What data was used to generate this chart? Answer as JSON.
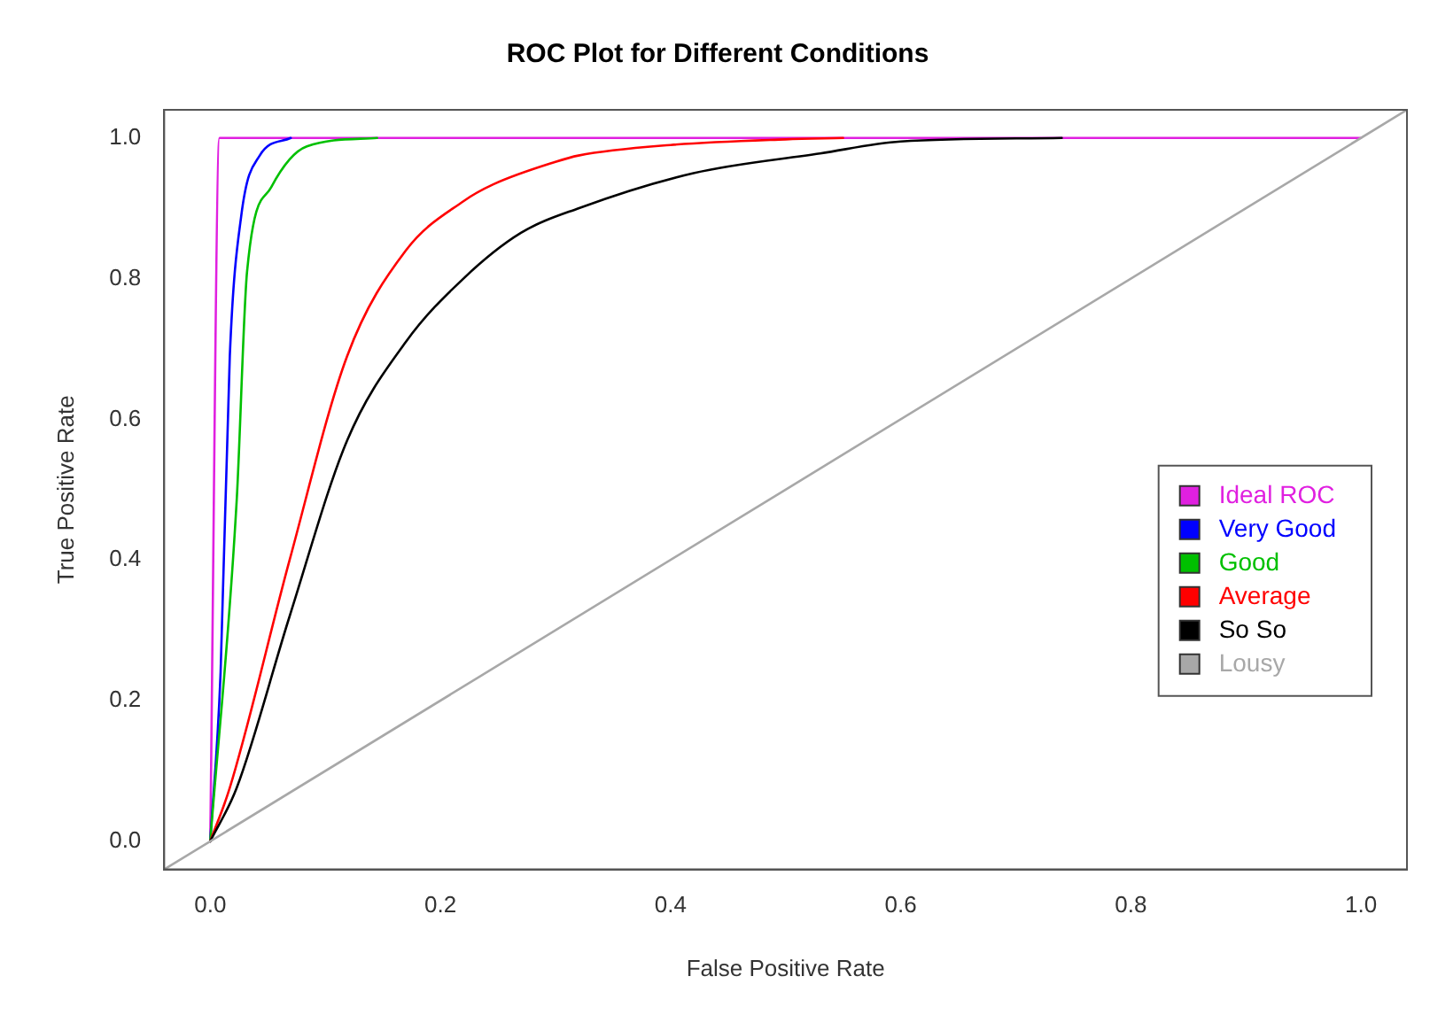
{
  "chart_data": {
    "type": "line",
    "title": "ROC Plot for Different Conditions",
    "xlabel": "False Positive Rate",
    "ylabel": "True Positive Rate",
    "xlim": [
      -0.04,
      1.04
    ],
    "ylim": [
      -0.04,
      1.04
    ],
    "xticks": [
      {
        "value": 0,
        "label": "0.0"
      },
      {
        "value": 0.2,
        "label": "0.2"
      },
      {
        "value": 0.4,
        "label": "0.4"
      },
      {
        "value": 0.6,
        "label": "0.6"
      },
      {
        "value": 0.8,
        "label": "0.8"
      },
      {
        "value": 1,
        "label": "1.0"
      }
    ],
    "yticks": [
      {
        "value": 0,
        "label": "0.0"
      },
      {
        "value": 0.2,
        "label": "0.2"
      },
      {
        "value": 0.4,
        "label": "0.4"
      },
      {
        "value": 0.6,
        "label": "0.6"
      },
      {
        "value": 0.8,
        "label": "0.8"
      },
      {
        "value": 1,
        "label": "1.0"
      }
    ],
    "grid": false,
    "legend": "right",
    "marker": "none",
    "line_style": "solid",
    "series": [
      {
        "name": "Lousy",
        "color": "#a8a8a8",
        "x": [
          -0.04,
          1.04
        ],
        "values": [
          -0.04,
          1.04
        ]
      },
      {
        "name": "So So",
        "color": "#000000",
        "x": [
          0,
          0.023,
          0.069,
          0.119,
          0.17,
          0.22,
          0.27,
          0.32,
          0.42,
          0.53,
          0.6,
          0.74
        ],
        "values": [
          0,
          0.076,
          0.32,
          0.57,
          0.71,
          0.8,
          0.865,
          0.9,
          0.95,
          0.978,
          0.995,
          1
        ]
      },
      {
        "name": "Average",
        "color": "#ff0000",
        "x": [
          0,
          0.017,
          0.069,
          0.119,
          0.17,
          0.22,
          0.246,
          0.3,
          0.32,
          0.4,
          0.5,
          0.55
        ],
        "values": [
          0,
          0.076,
          0.4,
          0.69,
          0.84,
          0.91,
          0.934,
          0.966,
          0.975,
          0.99,
          0.998,
          1
        ]
      },
      {
        "name": "Good",
        "color": "#00c000",
        "x": [
          0,
          0.023,
          0.032,
          0.053,
          0.084,
          0.145
        ],
        "values": [
          0,
          0.485,
          0.81,
          0.93,
          0.988,
          1
        ]
      },
      {
        "name": "Very Good",
        "color": "#0000ff",
        "x": [
          0,
          0.009,
          0.017,
          0.027,
          0.043,
          0.07
        ],
        "values": [
          0,
          0.24,
          0.69,
          0.89,
          0.975,
          1
        ]
      },
      {
        "name": "Ideal ROC",
        "color": "#e020e0",
        "x": [
          0,
          0.008,
          1
        ],
        "values": [
          0,
          1,
          1
        ]
      }
    ]
  }
}
